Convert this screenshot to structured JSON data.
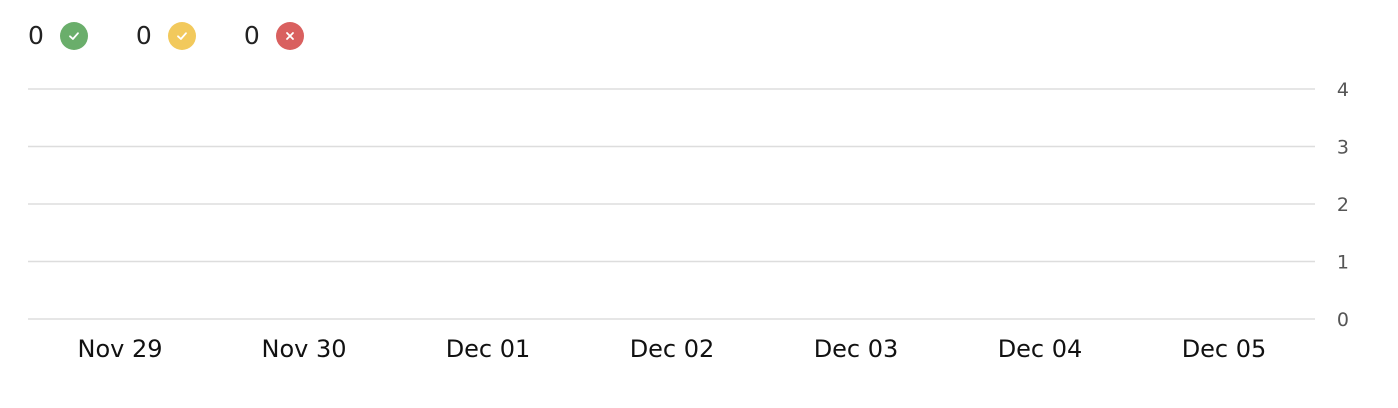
{
  "status_summary": {
    "items": [
      {
        "count": "0",
        "icon": "check-icon",
        "color": "#6aae6b"
      },
      {
        "count": "0",
        "icon": "check-icon",
        "color": "#f2c95c"
      },
      {
        "count": "0",
        "icon": "close-icon",
        "color": "#d9605f"
      }
    ]
  },
  "chart_data": {
    "type": "bar",
    "categories": [
      "Nov 29",
      "Nov 30",
      "Dec 01",
      "Dec 02",
      "Dec 03",
      "Dec 04",
      "Dec 05"
    ],
    "series": [
      {
        "values": [
          0,
          0,
          0,
          0,
          0,
          0,
          0
        ],
        "color": "#6aae6b"
      },
      {
        "values": [
          0,
          0,
          0,
          0,
          0,
          0,
          0
        ],
        "color": "#f2c95c"
      },
      {
        "values": [
          0,
          0,
          0,
          0,
          0,
          0,
          0
        ],
        "color": "#d9605f"
      }
    ],
    "y_ticks": [
      "0",
      "1",
      "2",
      "3",
      "4"
    ],
    "ylim": [
      0,
      4
    ],
    "y_axis_side": "right",
    "grid": true,
    "grid_color": "#dddddd"
  }
}
